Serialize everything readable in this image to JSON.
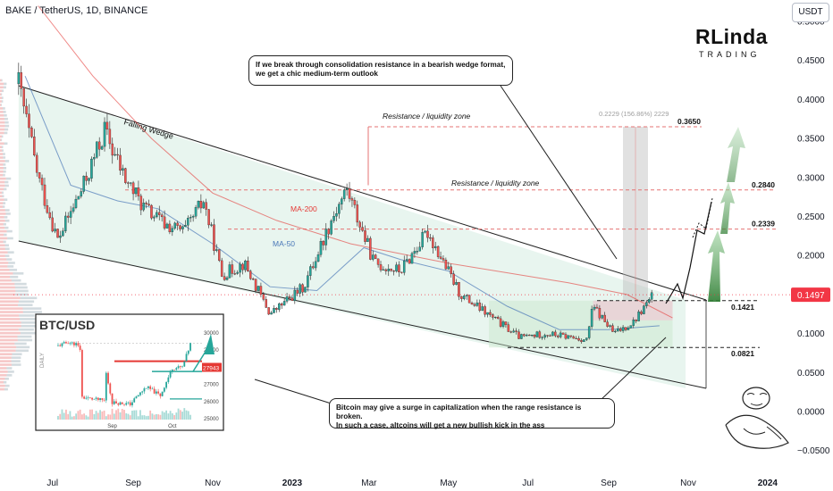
{
  "header": {
    "symbol_line": "BAKE / TetherUS, 1D, BINANCE",
    "currency_button": "USDT"
  },
  "logo": {
    "main": "RLinda",
    "sub": "TRADING"
  },
  "chart_data": {
    "type": "candlestick",
    "title": "BAKE / TetherUS, 1D, BINANCE",
    "y_unit": "USDT",
    "yaxis_ticks": [
      "0.5000",
      "0.4500",
      "0.4000",
      "0.3500",
      "0.3000",
      "0.2500",
      "0.2000",
      "0.1500",
      "0.1000",
      "0.0500",
      "0.0000",
      "−0.0500"
    ],
    "ylim": [
      -0.06,
      0.52
    ],
    "xaxis_ticks": [
      "Jul",
      "Sep",
      "Nov",
      "2023",
      "Mar",
      "May",
      "Jul",
      "Sep",
      "Nov",
      "2024"
    ],
    "xaxis_bold": [
      "2023",
      "2024"
    ],
    "last_price": "0.1497",
    "last_price_color": "#f23645",
    "price_path": [
      {
        "x": "2022-06-05",
        "y": 0.42
      },
      {
        "x": "2022-06-20",
        "y": 0.3
      },
      {
        "x": "2022-07-05",
        "y": 0.22
      },
      {
        "x": "2022-07-25",
        "y": 0.29
      },
      {
        "x": "2022-08-10",
        "y": 0.36
      },
      {
        "x": "2022-08-25",
        "y": 0.3
      },
      {
        "x": "2022-09-10",
        "y": 0.26
      },
      {
        "x": "2022-09-25",
        "y": 0.24
      },
      {
        "x": "2022-10-10",
        "y": 0.23
      },
      {
        "x": "2022-10-25",
        "y": 0.27
      },
      {
        "x": "2022-11-08",
        "y": 0.175
      },
      {
        "x": "2022-11-25",
        "y": 0.19
      },
      {
        "x": "2022-12-15",
        "y": 0.125
      },
      {
        "x": "2023-01-10",
        "y": 0.16
      },
      {
        "x": "2023-02-01",
        "y": 0.25
      },
      {
        "x": "2023-02-12",
        "y": 0.285
      },
      {
        "x": "2023-03-05",
        "y": 0.19
      },
      {
        "x": "2023-03-25",
        "y": 0.18
      },
      {
        "x": "2023-04-15",
        "y": 0.23
      },
      {
        "x": "2023-05-10",
        "y": 0.15
      },
      {
        "x": "2023-06-08",
        "y": 0.115
      },
      {
        "x": "2023-06-25",
        "y": 0.095
      },
      {
        "x": "2023-07-15",
        "y": 0.1
      },
      {
        "x": "2023-08-15",
        "y": 0.092
      },
      {
        "x": "2023-08-20",
        "y": 0.135
      },
      {
        "x": "2023-09-05",
        "y": 0.1
      },
      {
        "x": "2023-09-20",
        "y": 0.115
      },
      {
        "x": "2023-10-05",
        "y": 0.1497
      }
    ],
    "ma200": [
      {
        "x": "2022-06-20",
        "y": 0.52
      },
      {
        "x": "2022-08-01",
        "y": 0.43
      },
      {
        "x": "2022-09-15",
        "y": 0.35
      },
      {
        "x": "2022-11-01",
        "y": 0.28
      },
      {
        "x": "2022-12-20",
        "y": 0.245
      },
      {
        "x": "2023-02-15",
        "y": 0.215
      },
      {
        "x": "2023-05-01",
        "y": 0.19
      },
      {
        "x": "2023-08-01",
        "y": 0.165
      },
      {
        "x": "2023-09-15",
        "y": 0.15
      },
      {
        "x": "2023-10-20",
        "y": 0.12
      }
    ],
    "ma50": [
      {
        "x": "2022-06-10",
        "y": 0.43
      },
      {
        "x": "2022-07-15",
        "y": 0.29
      },
      {
        "x": "2022-08-20",
        "y": 0.27
      },
      {
        "x": "2022-09-20",
        "y": 0.26
      },
      {
        "x": "2022-11-01",
        "y": 0.215
      },
      {
        "x": "2022-12-15",
        "y": 0.16
      },
      {
        "x": "2023-01-20",
        "y": 0.155
      },
      {
        "x": "2023-02-25",
        "y": 0.21
      },
      {
        "x": "2023-03-25",
        "y": 0.195
      },
      {
        "x": "2023-05-01",
        "y": 0.18
      },
      {
        "x": "2023-06-15",
        "y": 0.135
      },
      {
        "x": "2023-07-25",
        "y": 0.105
      },
      {
        "x": "2023-09-01",
        "y": 0.105
      },
      {
        "x": "2023-10-10",
        "y": 0.11
      }
    ],
    "levels": [
      {
        "label": "0.3650",
        "value": 0.365
      },
      {
        "label": "0.2840",
        "value": 0.284
      },
      {
        "label": "0.2339",
        "value": 0.2339
      },
      {
        "label": "0.1421",
        "value": 0.1421
      },
      {
        "label": "0.0821",
        "value": 0.0821
      }
    ],
    "annotations": {
      "falling_wedge": "Falling Wedge",
      "ma200": "MA-200",
      "ma50": "MA-50",
      "resistance_upper": "Resistance / liquidity zone",
      "resistance_lower": "Resistance / liquidity zone",
      "measure": "0.2229 (156.86%) 2229"
    },
    "annotation_colors": {
      "ma200": "#e53935",
      "ma50": "#4a78b8",
      "wedge_fill": "#e0f2e9",
      "projection": "#66bb6a"
    }
  },
  "notes": {
    "top_line1": "If we break through consolidation resistance in a bearish wedge format,",
    "top_line2": "we get a chic medium-term outlook",
    "bottom_line1": "Bitcoin may give a surge in capitalization when the range resistance is broken.",
    "bottom_line2": "In such a case, altcoins will get a new bullish kick in the ass"
  },
  "inset": {
    "title": "BTC/USD",
    "side_label": "DAILY",
    "yaxis_ticks": [
      "30000",
      "29000",
      "28000",
      "27000",
      "26000",
      "25000"
    ],
    "xaxis_ticks": [
      "Sep",
      "Oct"
    ],
    "price_tag": "27943",
    "series": [
      {
        "x": "2023-08-05",
        "y": 29200
      },
      {
        "x": "2023-08-10",
        "y": 29400
      },
      {
        "x": "2023-08-14",
        "y": 29300
      },
      {
        "x": "2023-08-16",
        "y": 29000
      },
      {
        "x": "2023-08-17",
        "y": 26200
      },
      {
        "x": "2023-08-22",
        "y": 26100
      },
      {
        "x": "2023-08-28",
        "y": 26000
      },
      {
        "x": "2023-08-29",
        "y": 27600
      },
      {
        "x": "2023-09-01",
        "y": 25900
      },
      {
        "x": "2023-09-10",
        "y": 25800
      },
      {
        "x": "2023-09-13",
        "y": 26200
      },
      {
        "x": "2023-09-18",
        "y": 26800
      },
      {
        "x": "2023-09-25",
        "y": 26300
      },
      {
        "x": "2023-10-01",
        "y": 27900
      },
      {
        "x": "2023-10-06",
        "y": 27943
      },
      {
        "x": "2023-10-10",
        "y": 29300
      }
    ]
  }
}
